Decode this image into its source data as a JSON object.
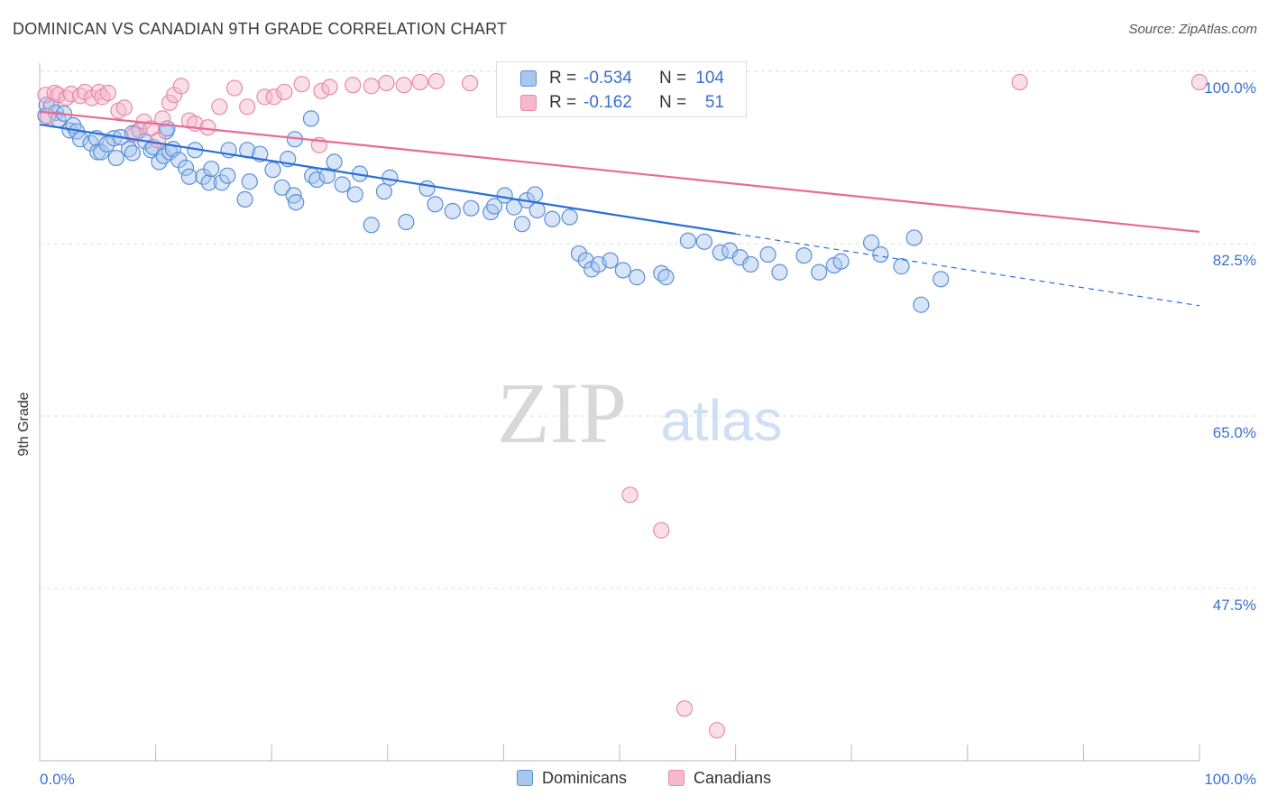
{
  "title": "DOMINICAN VS CANADIAN 9TH GRADE CORRELATION CHART",
  "source": "Source: ZipAtlas.com",
  "watermark": {
    "zip": "ZIP",
    "atlas": "atlas"
  },
  "legend": {
    "rows": [
      {
        "r_label": "R =",
        "r_value": "-0.534",
        "n_label": "N =",
        "n_value": "104"
      },
      {
        "r_label": "R =",
        "r_value": "-0.162",
        "n_label": "N =",
        "n_value": "51"
      }
    ]
  },
  "bottom_legend": {
    "dominicans": "Dominicans",
    "canadians": "Canadians"
  },
  "colors": {
    "dominicans_fill": "#a9c6ef",
    "dominicans_stroke": "#5b8fd6",
    "dominicans_line": "#2a6ed6",
    "canadians_fill": "#f6b8cb",
    "canadians_stroke": "#e88aa8",
    "canadians_line": "#e86a95",
    "axis_label": "#3a6fd0",
    "grid": "#dddddd"
  },
  "chart_data": {
    "type": "scatter",
    "title": "DOMINICAN VS CANADIAN 9TH GRADE CORRELATION CHART",
    "xlabel": "",
    "ylabel": "9th Grade",
    "xlim": [
      0,
      100
    ],
    "ylim": [
      31.5,
      102
    ],
    "x_tick_labels": [
      "0.0%",
      "100.0%"
    ],
    "y_ticks": [
      100.0,
      82.5,
      65.0,
      47.5
    ],
    "y_tick_labels": [
      "100.0%",
      "82.5%",
      "65.0%",
      "47.5%"
    ],
    "grid": true,
    "legend_position": "top-center",
    "series": [
      {
        "name": "Dominicans",
        "R": -0.534,
        "N": 104,
        "trend": {
          "x0": 0,
          "y0": 94.6,
          "x1": 60,
          "y1": 83.5,
          "dash_x1": 100,
          "dash_y1": 76.2
        },
        "points": [
          [
            0.5,
            95.5
          ],
          [
            0.6,
            96.6
          ],
          [
            1.0,
            96.5
          ],
          [
            1.4,
            95.8
          ],
          [
            1.6,
            95.1
          ],
          [
            2.1,
            95.7
          ],
          [
            2.6,
            94.0
          ],
          [
            2.9,
            94.5
          ],
          [
            3.2,
            93.9
          ],
          [
            3.5,
            93.1
          ],
          [
            4.4,
            92.7
          ],
          [
            4.9,
            93.2
          ],
          [
            5.0,
            91.8
          ],
          [
            5.3,
            91.8
          ],
          [
            5.8,
            92.6
          ],
          [
            6.4,
            93.2
          ],
          [
            6.6,
            91.2
          ],
          [
            7.0,
            93.3
          ],
          [
            7.7,
            92.1
          ],
          [
            8.0,
            93.7
          ],
          [
            8.6,
            94.0
          ],
          [
            8.0,
            91.7
          ],
          [
            9.1,
            92.9
          ],
          [
            9.6,
            92.0
          ],
          [
            9.8,
            92.3
          ],
          [
            10.3,
            90.8
          ],
          [
            10.7,
            91.4
          ],
          [
            10.9,
            93.9
          ],
          [
            11.0,
            94.2
          ],
          [
            11.2,
            91.8
          ],
          [
            11.5,
            92.1
          ],
          [
            12.0,
            91.0
          ],
          [
            12.6,
            90.2
          ],
          [
            12.9,
            89.3
          ],
          [
            13.4,
            92.0
          ],
          [
            14.1,
            89.3
          ],
          [
            14.6,
            88.7
          ],
          [
            14.8,
            90.1
          ],
          [
            15.7,
            88.7
          ],
          [
            16.2,
            89.4
          ],
          [
            16.3,
            92.0
          ],
          [
            17.7,
            87.0
          ],
          [
            18.1,
            88.8
          ],
          [
            17.9,
            92.0
          ],
          [
            19.0,
            91.6
          ],
          [
            20.1,
            90.0
          ],
          [
            21.4,
            91.1
          ],
          [
            22.0,
            93.1
          ],
          [
            23.5,
            89.4
          ],
          [
            23.9,
            89.0
          ],
          [
            24.8,
            89.4
          ],
          [
            25.4,
            90.8
          ],
          [
            26.1,
            88.5
          ],
          [
            20.9,
            88.2
          ],
          [
            21.9,
            87.4
          ],
          [
            22.1,
            86.7
          ],
          [
            23.4,
            95.2
          ],
          [
            27.2,
            87.5
          ],
          [
            27.6,
            89.6
          ],
          [
            28.6,
            84.4
          ],
          [
            29.7,
            87.8
          ],
          [
            30.2,
            89.2
          ],
          [
            31.6,
            84.7
          ],
          [
            33.4,
            88.1
          ],
          [
            34.1,
            86.5
          ],
          [
            35.6,
            85.8
          ],
          [
            37.2,
            86.1
          ],
          [
            38.9,
            85.7
          ],
          [
            39.2,
            86.3
          ],
          [
            40.1,
            87.4
          ],
          [
            40.9,
            86.2
          ],
          [
            41.6,
            84.5
          ],
          [
            42.0,
            86.9
          ],
          [
            42.7,
            87.5
          ],
          [
            42.9,
            85.9
          ],
          [
            44.2,
            85.0
          ],
          [
            45.7,
            85.2
          ],
          [
            46.5,
            81.5
          ],
          [
            47.1,
            80.8
          ],
          [
            47.6,
            79.9
          ],
          [
            48.2,
            80.4
          ],
          [
            49.2,
            80.8
          ],
          [
            50.3,
            79.8
          ],
          [
            51.5,
            79.1
          ],
          [
            53.6,
            79.5
          ],
          [
            54.0,
            79.1
          ],
          [
            55.9,
            82.8
          ],
          [
            57.3,
            82.7
          ],
          [
            58.7,
            81.6
          ],
          [
            59.5,
            81.8
          ],
          [
            60.4,
            81.1
          ],
          [
            61.3,
            80.4
          ],
          [
            62.8,
            81.4
          ],
          [
            63.8,
            79.6
          ],
          [
            65.9,
            81.3
          ],
          [
            67.2,
            79.6
          ],
          [
            68.5,
            80.3
          ],
          [
            69.1,
            80.7
          ],
          [
            71.7,
            82.6
          ],
          [
            72.5,
            81.4
          ],
          [
            74.3,
            80.2
          ],
          [
            75.4,
            83.1
          ],
          [
            76.0,
            76.3
          ],
          [
            77.7,
            78.9
          ]
        ]
      },
      {
        "name": "Canadians",
        "R": -0.162,
        "N": 51,
        "trend": {
          "x0": 0,
          "y0": 95.9,
          "x1": 100,
          "y1": 83.7
        },
        "points": [
          [
            0.5,
            97.6
          ],
          [
            0.7,
            95.4
          ],
          [
            1.3,
            97.8
          ],
          [
            1.6,
            97.6
          ],
          [
            2.3,
            97.3
          ],
          [
            2.7,
            97.7
          ],
          [
            3.5,
            97.5
          ],
          [
            3.9,
            97.9
          ],
          [
            4.5,
            97.3
          ],
          [
            5.1,
            97.9
          ],
          [
            5.4,
            97.4
          ],
          [
            5.9,
            97.8
          ],
          [
            6.8,
            96.0
          ],
          [
            7.3,
            96.3
          ],
          [
            8.2,
            93.6
          ],
          [
            9.0,
            94.9
          ],
          [
            9.6,
            94.2
          ],
          [
            10.2,
            93.0
          ],
          [
            10.6,
            95.2
          ],
          [
            11.2,
            96.8
          ],
          [
            11.6,
            97.6
          ],
          [
            12.2,
            98.5
          ],
          [
            12.9,
            95.0
          ],
          [
            13.4,
            94.7
          ],
          [
            14.5,
            94.3
          ],
          [
            15.5,
            96.4
          ],
          [
            16.8,
            98.3
          ],
          [
            17.9,
            96.4
          ],
          [
            19.4,
            97.4
          ],
          [
            20.2,
            97.4
          ],
          [
            21.1,
            97.9
          ],
          [
            22.6,
            98.7
          ],
          [
            24.3,
            98.0
          ],
          [
            24.1,
            92.5
          ],
          [
            25.0,
            98.4
          ],
          [
            27.0,
            98.6
          ],
          [
            28.6,
            98.5
          ],
          [
            29.9,
            98.8
          ],
          [
            31.4,
            98.6
          ],
          [
            32.8,
            98.9
          ],
          [
            34.2,
            99.0
          ],
          [
            37.1,
            98.8
          ],
          [
            40.4,
            98.5
          ],
          [
            41.8,
            98.7
          ],
          [
            46.9,
            98.8
          ],
          [
            50.9,
            57.0
          ],
          [
            53.6,
            53.4
          ],
          [
            55.6,
            35.3
          ],
          [
            58.4,
            33.1
          ],
          [
            84.5,
            98.9
          ],
          [
            100.0,
            98.9
          ]
        ]
      }
    ]
  }
}
